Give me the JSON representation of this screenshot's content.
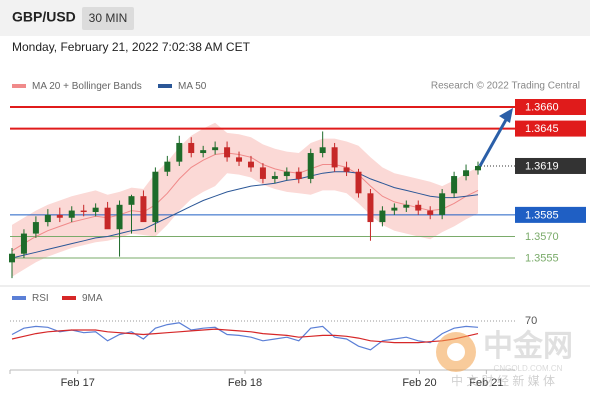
{
  "header": {
    "symbol": "GBP/USD",
    "timeframe": "30 MIN",
    "timestamp": "Monday, February 21, 2022 7:02:38 AM CET"
  },
  "watermark": {
    "title": "中金网",
    "url": "CNGOLD.COM.CN",
    "tagline": "中 文 财 经 新 媒 体"
  },
  "chart_data": [
    {
      "type": "candlestick",
      "credit": "Research © 2022 Trading Central",
      "up_color": "#1e6b2a",
      "down_color": "#c62828",
      "candles": {
        "open": [
          1.3552,
          1.3558,
          1.3572,
          1.358,
          1.3585,
          1.3583,
          1.3588,
          1.3587,
          1.359,
          1.3575,
          1.3592,
          1.3598,
          1.358,
          1.3615,
          1.3622,
          1.3635,
          1.3628,
          1.363,
          1.3632,
          1.3625,
          1.3622,
          1.3618,
          1.361,
          1.3612,
          1.3615,
          1.361,
          1.3628,
          1.3632,
          1.3618,
          1.3615,
          1.36,
          1.358,
          1.3588,
          1.359,
          1.3592,
          1.3588,
          1.3585,
          1.36,
          1.3612,
          1.3616
        ],
        "high": [
          1.3562,
          1.3575,
          1.3584,
          1.3589,
          1.359,
          1.3591,
          1.3592,
          1.3593,
          1.3594,
          1.3595,
          1.3599,
          1.3602,
          1.3618,
          1.3626,
          1.364,
          1.3639,
          1.3633,
          1.3636,
          1.3636,
          1.3629,
          1.3626,
          1.3621,
          1.3615,
          1.3618,
          1.3618,
          1.3631,
          1.3643,
          1.3635,
          1.3622,
          1.3617,
          1.3603,
          1.3591,
          1.3593,
          1.3595,
          1.3595,
          1.3591,
          1.3603,
          1.3615,
          1.362,
          1.3622
        ],
        "low": [
          1.3541,
          1.3555,
          1.3569,
          1.3577,
          1.358,
          1.358,
          1.3584,
          1.3584,
          1.3586,
          1.3556,
          1.3572,
          1.3595,
          1.3573,
          1.3612,
          1.3619,
          1.3625,
          1.3625,
          1.3627,
          1.3622,
          1.3619,
          1.3615,
          1.3607,
          1.3607,
          1.3609,
          1.3607,
          1.3607,
          1.3625,
          1.3615,
          1.3612,
          1.3597,
          1.3567,
          1.3577,
          1.3585,
          1.3587,
          1.3585,
          1.3582,
          1.3582,
          1.3597,
          1.3609,
          1.3613
        ],
        "close": [
          1.3558,
          1.3572,
          1.358,
          1.3585,
          1.3583,
          1.3588,
          1.3587,
          1.359,
          1.3575,
          1.3592,
          1.3598,
          1.358,
          1.3615,
          1.3622,
          1.3635,
          1.3628,
          1.363,
          1.3632,
          1.3625,
          1.3622,
          1.3618,
          1.361,
          1.3612,
          1.3615,
          1.361,
          1.3628,
          1.3632,
          1.3618,
          1.3615,
          1.36,
          1.358,
          1.3588,
          1.359,
          1.3592,
          1.3588,
          1.3585,
          1.36,
          1.3612,
          1.3616,
          1.3619
        ]
      },
      "series": [
        {
          "name": "MA 20 + Bollinger Bands",
          "color": "#f08a8a",
          "band_color": "#fbd9d6",
          "values": [
            1.356,
            1.3565,
            1.357,
            1.3574,
            1.3577,
            1.358,
            1.3582,
            1.3584,
            1.3583,
            1.3585,
            1.3588,
            1.3587,
            1.3592,
            1.36,
            1.361,
            1.3618,
            1.3623,
            1.3627,
            1.3628,
            1.3627,
            1.3625,
            1.362,
            1.3617,
            1.3615,
            1.3614,
            1.3617,
            1.362,
            1.362,
            1.3618,
            1.3613,
            1.3605,
            1.3598,
            1.3594,
            1.3592,
            1.359,
            1.3588,
            1.3589,
            1.3593,
            1.3598,
            1.3602
          ],
          "upper": [
            1.3578,
            1.3583,
            1.3588,
            1.3592,
            1.3595,
            1.3598,
            1.36,
            1.3602,
            1.3599,
            1.3601,
            1.3604,
            1.3603,
            1.3614,
            1.3622,
            1.3632,
            1.364,
            1.3645,
            1.3649,
            1.3642,
            1.3641,
            1.3639,
            1.3634,
            1.3631,
            1.3629,
            1.3628,
            1.3635,
            1.3638,
            1.3638,
            1.3636,
            1.3633,
            1.3625,
            1.3618,
            1.3614,
            1.3612,
            1.361,
            1.3608,
            1.3605,
            1.3609,
            1.3614,
            1.3618
          ],
          "lower": [
            1.3542,
            1.3547,
            1.3552,
            1.3556,
            1.3559,
            1.3562,
            1.3564,
            1.3566,
            1.3567,
            1.3569,
            1.3572,
            1.3571,
            1.357,
            1.3578,
            1.3588,
            1.3596,
            1.3601,
            1.3605,
            1.3614,
            1.3613,
            1.3611,
            1.3606,
            1.3603,
            1.3601,
            1.36,
            1.3599,
            1.3602,
            1.3602,
            1.36,
            1.3593,
            1.3585,
            1.3578,
            1.3574,
            1.3572,
            1.357,
            1.3568,
            1.3573,
            1.3577,
            1.3582,
            1.3586
          ]
        },
        {
          "name": "MA 50",
          "color": "#2b5797",
          "values": [
            1.3555,
            1.3557,
            1.3559,
            1.3561,
            1.3563,
            1.3565,
            1.3567,
            1.3569,
            1.357,
            1.3572,
            1.3574,
            1.3575,
            1.3579,
            1.3583,
            1.3587,
            1.3591,
            1.3595,
            1.3598,
            1.3601,
            1.3603,
            1.3605,
            1.3606,
            1.3607,
            1.3609,
            1.361,
            1.3612,
            1.3614,
            1.3615,
            1.3615,
            1.3614,
            1.361,
            1.3607,
            1.3604,
            1.3602,
            1.36,
            1.3598,
            1.3597,
            1.3597,
            1.3598,
            1.3599
          ]
        }
      ],
      "levels": {
        "values": [
          1.366,
          1.3645,
          1.3619,
          1.3585,
          1.357,
          1.3555
        ],
        "value_labels": [
          "1.3660",
          "1.3645",
          "1.3619",
          "1.3585",
          "1.3570",
          "1.3555"
        ],
        "colors": [
          "#e01b1b",
          "#e01b1b",
          "#333333",
          "#1f5fc4",
          "#7aab6a",
          "#7aab6a"
        ],
        "boxed": [
          true,
          true,
          true,
          true,
          false,
          false
        ]
      },
      "ylim": [
        1.354,
        1.3668
      ],
      "xlim": [
        0,
        39
      ],
      "xticks": [
        {
          "value": 5.5,
          "label": "Feb 17"
        },
        {
          "value": 19.5,
          "label": "Feb 18"
        },
        {
          "value": 34.1,
          "label": "Feb 20"
        },
        {
          "value": 39.7,
          "label": "Feb 21"
        }
      ]
    },
    {
      "type": "line",
      "series": [
        {
          "name": "RSI",
          "color": "#5b7fd6",
          "values": [
            55,
            62,
            64,
            63,
            58,
            60,
            57,
            58,
            48,
            55,
            58,
            50,
            62,
            66,
            68,
            60,
            62,
            63,
            55,
            54,
            52,
            48,
            50,
            52,
            48,
            62,
            64,
            52,
            50,
            42,
            38,
            48,
            50,
            52,
            48,
            46,
            56,
            62,
            64,
            63
          ]
        },
        {
          "name": "9MA",
          "color": "#d62728",
          "values": [
            50,
            53,
            56,
            58,
            59,
            60,
            60,
            60,
            58,
            57,
            56,
            55,
            56,
            57,
            58,
            59,
            60,
            61,
            60,
            59,
            58,
            56,
            55,
            54,
            52,
            53,
            54,
            54,
            53,
            51,
            48,
            47,
            46,
            46,
            46,
            47,
            48,
            50,
            53,
            56
          ]
        }
      ],
      "ylim": [
        20,
        80
      ],
      "xlim": [
        0,
        39
      ],
      "yticks": [
        70
      ]
    }
  ]
}
